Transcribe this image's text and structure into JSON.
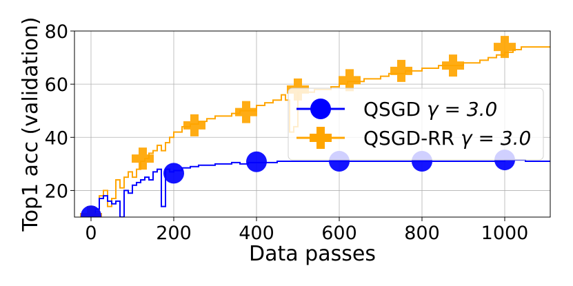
{
  "chart_data": {
    "type": "line",
    "title": "",
    "xlabel": "Data passes",
    "ylabel": "Top1 acc (validation)",
    "xlim": [
      -40,
      1110
    ],
    "ylim": [
      10,
      80
    ],
    "xticks": [
      0,
      200,
      400,
      600,
      800,
      1000
    ],
    "yticks": [
      20,
      40,
      60,
      80
    ],
    "grid": true,
    "legend": "center-right",
    "series": [
      {
        "name": "QSGD γ = 3.0",
        "label_prefix": "QSGD ",
        "label_gamma": "γ = 3.0",
        "color": "#0000ff",
        "marker": "circle",
        "step": true,
        "x": [
          0,
          10,
          20,
          30,
          40,
          50,
          60,
          70,
          75,
          80,
          90,
          100,
          110,
          120,
          130,
          140,
          150,
          160,
          170,
          175,
          180,
          190,
          200,
          220,
          240,
          260,
          280,
          300,
          320,
          340,
          360,
          380,
          400,
          450,
          500,
          550,
          600,
          650,
          700,
          750,
          800,
          850,
          900,
          950,
          1000,
          1050,
          1110
        ],
        "y": [
          10.5,
          13,
          17,
          18,
          16,
          15,
          16,
          10,
          10,
          20,
          19,
          22,
          23,
          24,
          25,
          24,
          27,
          28,
          14,
          14,
          28,
          27,
          27.5,
          28.5,
          29,
          29.5,
          29.5,
          30,
          30,
          30.5,
          30,
          30.5,
          30.5,
          31,
          31,
          31,
          31,
          31,
          31,
          31,
          31,
          31,
          31,
          31,
          31.5,
          31,
          31
        ],
        "markers_x": [
          0,
          200,
          400,
          600,
          800,
          1000
        ],
        "markers_y": [
          10.5,
          26.5,
          30.8,
          31,
          31,
          31.5
        ]
      },
      {
        "name": "QSGD-RR γ = 3.0",
        "label_prefix": "QSGD-RR ",
        "label_gamma": "γ = 3.0",
        "color": "#ffa500",
        "marker": "plus",
        "step": true,
        "x": [
          0,
          10,
          20,
          30,
          40,
          50,
          60,
          70,
          80,
          90,
          100,
          110,
          120,
          130,
          140,
          150,
          160,
          170,
          180,
          190,
          200,
          220,
          240,
          260,
          280,
          300,
          320,
          340,
          360,
          380,
          400,
          420,
          440,
          460,
          470,
          480,
          490,
          500,
          520,
          540,
          560,
          580,
          600,
          620,
          640,
          660,
          680,
          700,
          720,
          740,
          760,
          780,
          800,
          820,
          840,
          860,
          880,
          900,
          920,
          940,
          960,
          980,
          1000,
          1020,
          1040,
          1060,
          1080,
          1110
        ],
        "y": [
          10,
          12,
          18,
          20,
          14,
          17,
          24,
          21,
          25,
          27,
          25,
          28,
          31,
          32,
          34,
          35,
          37,
          35,
          38,
          40,
          42,
          44,
          45,
          46,
          47,
          48,
          48,
          49,
          50,
          50,
          52,
          53,
          54,
          56,
          54,
          42,
          44,
          57,
          57,
          58,
          58,
          59,
          60,
          61,
          61,
          62,
          62,
          63,
          64,
          64,
          65,
          65,
          66,
          66,
          67,
          67,
          67,
          68,
          68,
          69,
          70,
          71,
          72,
          73,
          74,
          74,
          74,
          74
        ],
        "markers_x": [
          0,
          125,
          250,
          375,
          500,
          625,
          750,
          875,
          1000
        ],
        "markers_y": [
          10,
          32,
          44.5,
          49.5,
          58,
          61.5,
          65,
          67,
          74
        ]
      }
    ]
  }
}
